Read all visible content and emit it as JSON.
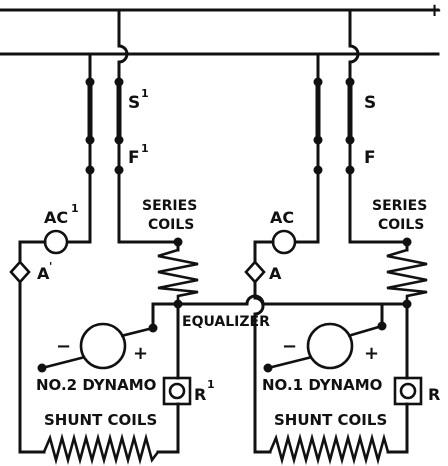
{
  "bus": {
    "positive_sign": "+",
    "negative_sign": "-"
  },
  "left": {
    "switch_upper": "S",
    "switch_lower": "F",
    "switch_prime": "1",
    "ammeter": "AC",
    "ammeter_prime": "1",
    "cutout": "A",
    "cutout_prime": "'",
    "series_coils": [
      "SERIES",
      "COILS"
    ],
    "dynamo_label": "NO.2 DYNAMO",
    "rheostat": "R",
    "rheostat_prime": "1",
    "shunt_coils": "SHUNT COILS",
    "minus": "−",
    "plus": "+"
  },
  "right": {
    "switch_upper": "S",
    "switch_lower": "F",
    "ammeter": "AC",
    "cutout": "A",
    "series_coils": [
      "SERIES",
      "COILS"
    ],
    "dynamo_label": "NO.1 DYNAMO",
    "rheostat": "R",
    "shunt_coils": "SHUNT COILS",
    "minus": "−",
    "plus": "+"
  },
  "equalizer": "EQUALIZER"
}
